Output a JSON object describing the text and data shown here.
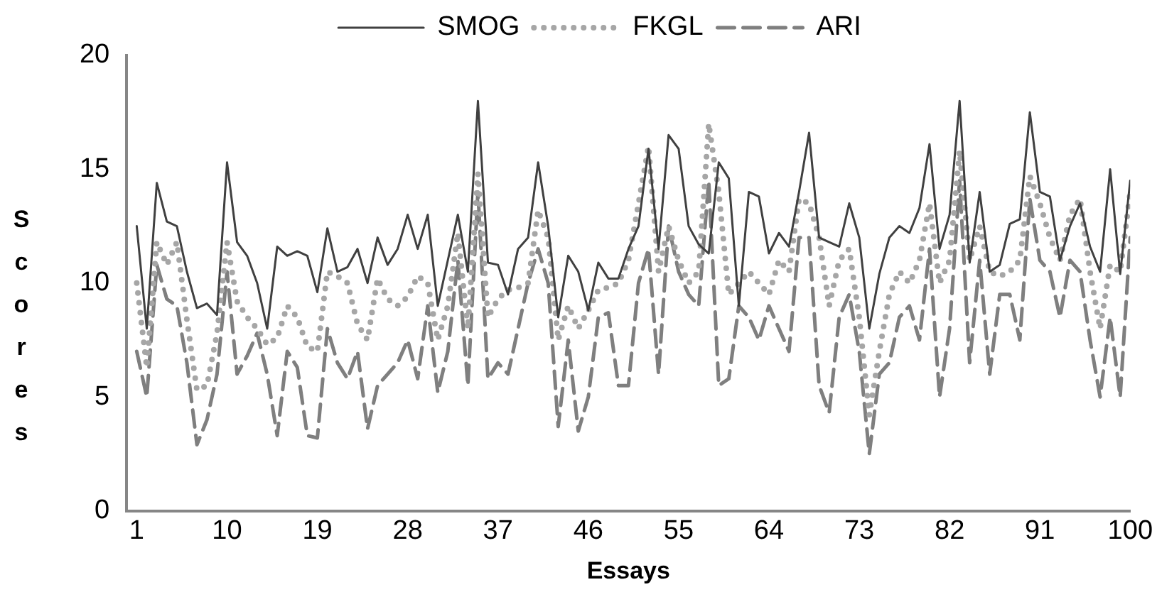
{
  "chart_data": {
    "type": "line",
    "xlabel": "Essays",
    "ylabel": "Scores",
    "x": [
      1,
      2,
      3,
      4,
      5,
      6,
      7,
      8,
      9,
      10,
      11,
      12,
      13,
      14,
      15,
      16,
      17,
      18,
      19,
      20,
      21,
      22,
      23,
      24,
      25,
      26,
      27,
      28,
      29,
      30,
      31,
      32,
      33,
      34,
      35,
      36,
      37,
      38,
      39,
      40,
      41,
      42,
      43,
      44,
      45,
      46,
      47,
      48,
      49,
      50,
      51,
      52,
      53,
      54,
      55,
      56,
      57,
      58,
      59,
      60,
      61,
      62,
      63,
      64,
      65,
      66,
      67,
      68,
      69,
      70,
      71,
      72,
      73,
      74,
      75,
      76,
      77,
      78,
      79,
      80,
      81,
      82,
      83,
      84,
      85,
      86,
      87,
      88,
      89,
      90,
      91,
      92,
      93,
      94,
      95,
      96,
      97,
      98,
      99,
      100
    ],
    "xlim": [
      0,
      100
    ],
    "xticks": [
      1,
      10,
      19,
      28,
      37,
      46,
      55,
      64,
      73,
      82,
      91,
      100
    ],
    "ylim": [
      0,
      20
    ],
    "yticks": [
      0,
      5,
      10,
      15,
      20
    ],
    "grid": false,
    "legend": "top",
    "marker": "none",
    "series": [
      {
        "name": "SMOG",
        "color": "#404040",
        "line_style": "solid",
        "values": [
          12.5,
          8.0,
          14.4,
          12.7,
          12.5,
          10.5,
          8.9,
          9.1,
          8.6,
          15.3,
          11.8,
          11.2,
          10.0,
          8.0,
          11.6,
          11.2,
          11.4,
          11.2,
          9.6,
          12.4,
          10.5,
          10.7,
          11.5,
          10.0,
          12.0,
          10.8,
          11.5,
          13.0,
          11.5,
          13.0,
          9.0,
          11.0,
          13.0,
          10.5,
          18.0,
          10.9,
          10.8,
          9.5,
          11.5,
          12.0,
          15.3,
          12.5,
          8.5,
          11.2,
          10.5,
          8.8,
          10.9,
          10.2,
          10.2,
          11.5,
          12.5,
          15.9,
          11.5,
          16.5,
          15.9,
          12.5,
          11.7,
          11.3,
          15.3,
          14.6,
          9.0,
          14.0,
          13.8,
          11.3,
          12.2,
          11.6,
          14.0,
          16.6,
          12.0,
          11.8,
          11.6,
          13.5,
          12.0,
          8.0,
          10.4,
          12.0,
          12.5,
          12.2,
          13.3,
          16.1,
          11.5,
          13.0,
          18.0,
          10.9,
          14.0,
          10.5,
          10.8,
          12.6,
          12.8,
          17.5,
          14.0,
          13.8,
          11.0,
          12.5,
          13.5,
          11.6,
          10.5,
          15.0,
          10.4,
          14.5
        ]
      },
      {
        "name": "FKGL",
        "color": "#a6a6a6",
        "line_style": "dotted",
        "values": [
          10,
          6.3,
          11.8,
          10.8,
          11.8,
          8.4,
          5.3,
          5.5,
          7.8,
          11.8,
          9.2,
          8.5,
          8.0,
          7.3,
          7.6,
          9.0,
          8.5,
          7.2,
          7.0,
          10.5,
          10.3,
          10.0,
          8.2,
          7.5,
          10.2,
          9.3,
          9.0,
          9.4,
          10.3,
          10.0,
          7.5,
          9.0,
          12.2,
          8.0,
          14.8,
          8.5,
          9.3,
          9.7,
          9.8,
          10.0,
          13.2,
          12.0,
          7.5,
          9.0,
          8.0,
          8.8,
          9.7,
          9.8,
          10.0,
          11.0,
          13.5,
          16.0,
          10.5,
          12.5,
          11.0,
          10.0,
          10.5,
          17.0,
          14.0,
          9.5,
          10.0,
          10.5,
          10.0,
          9.5,
          11.0,
          10.5,
          13.7,
          13.5,
          12.0,
          9.0,
          11.0,
          11.5,
          8.5,
          4.2,
          7.0,
          9.5,
          10.5,
          10.0,
          11.0,
          13.5,
          10.0,
          11.0,
          15.8,
          11.0,
          12.5,
          10.5,
          10.3,
          10.5,
          11.0,
          14.7,
          13.5,
          12.0,
          11.0,
          13.0,
          13.7,
          10.5,
          8.0,
          10.8,
          10.5,
          14.0
        ]
      },
      {
        "name": "ARI",
        "color": "#7f7f7f",
        "line_style": "dashed",
        "values": [
          7,
          5.0,
          10.8,
          9.3,
          9.0,
          6.5,
          2.9,
          4.0,
          6.0,
          10.5,
          6.0,
          6.8,
          7.8,
          6.0,
          3.3,
          7.0,
          6.3,
          3.3,
          3.2,
          8.0,
          6.5,
          5.8,
          7.0,
          3.6,
          5.5,
          6.0,
          6.5,
          7.5,
          5.8,
          9.0,
          5.2,
          7.0,
          11.0,
          5.5,
          14.0,
          5.8,
          6.5,
          6.0,
          8.0,
          10.0,
          11.5,
          10.0,
          3.7,
          7.5,
          3.5,
          5.0,
          8.5,
          8.7,
          5.5,
          5.5,
          10.0,
          11.5,
          6.0,
          12.5,
          10.5,
          9.5,
          9.0,
          14.5,
          5.5,
          5.8,
          9.0,
          8.5,
          7.5,
          9.0,
          8.0,
          7.0,
          12.0,
          12.0,
          5.5,
          4.3,
          8.5,
          9.5,
          7.0,
          2.5,
          6.0,
          6.5,
          8.5,
          9.0,
          7.5,
          11.5,
          5.0,
          8.0,
          14.5,
          6.5,
          11.0,
          6.0,
          9.5,
          9.5,
          7.5,
          13.7,
          11.0,
          10.5,
          8.5,
          11.0,
          10.5,
          7.5,
          5.0,
          8.5,
          5.0,
          12.0
        ]
      }
    ]
  }
}
